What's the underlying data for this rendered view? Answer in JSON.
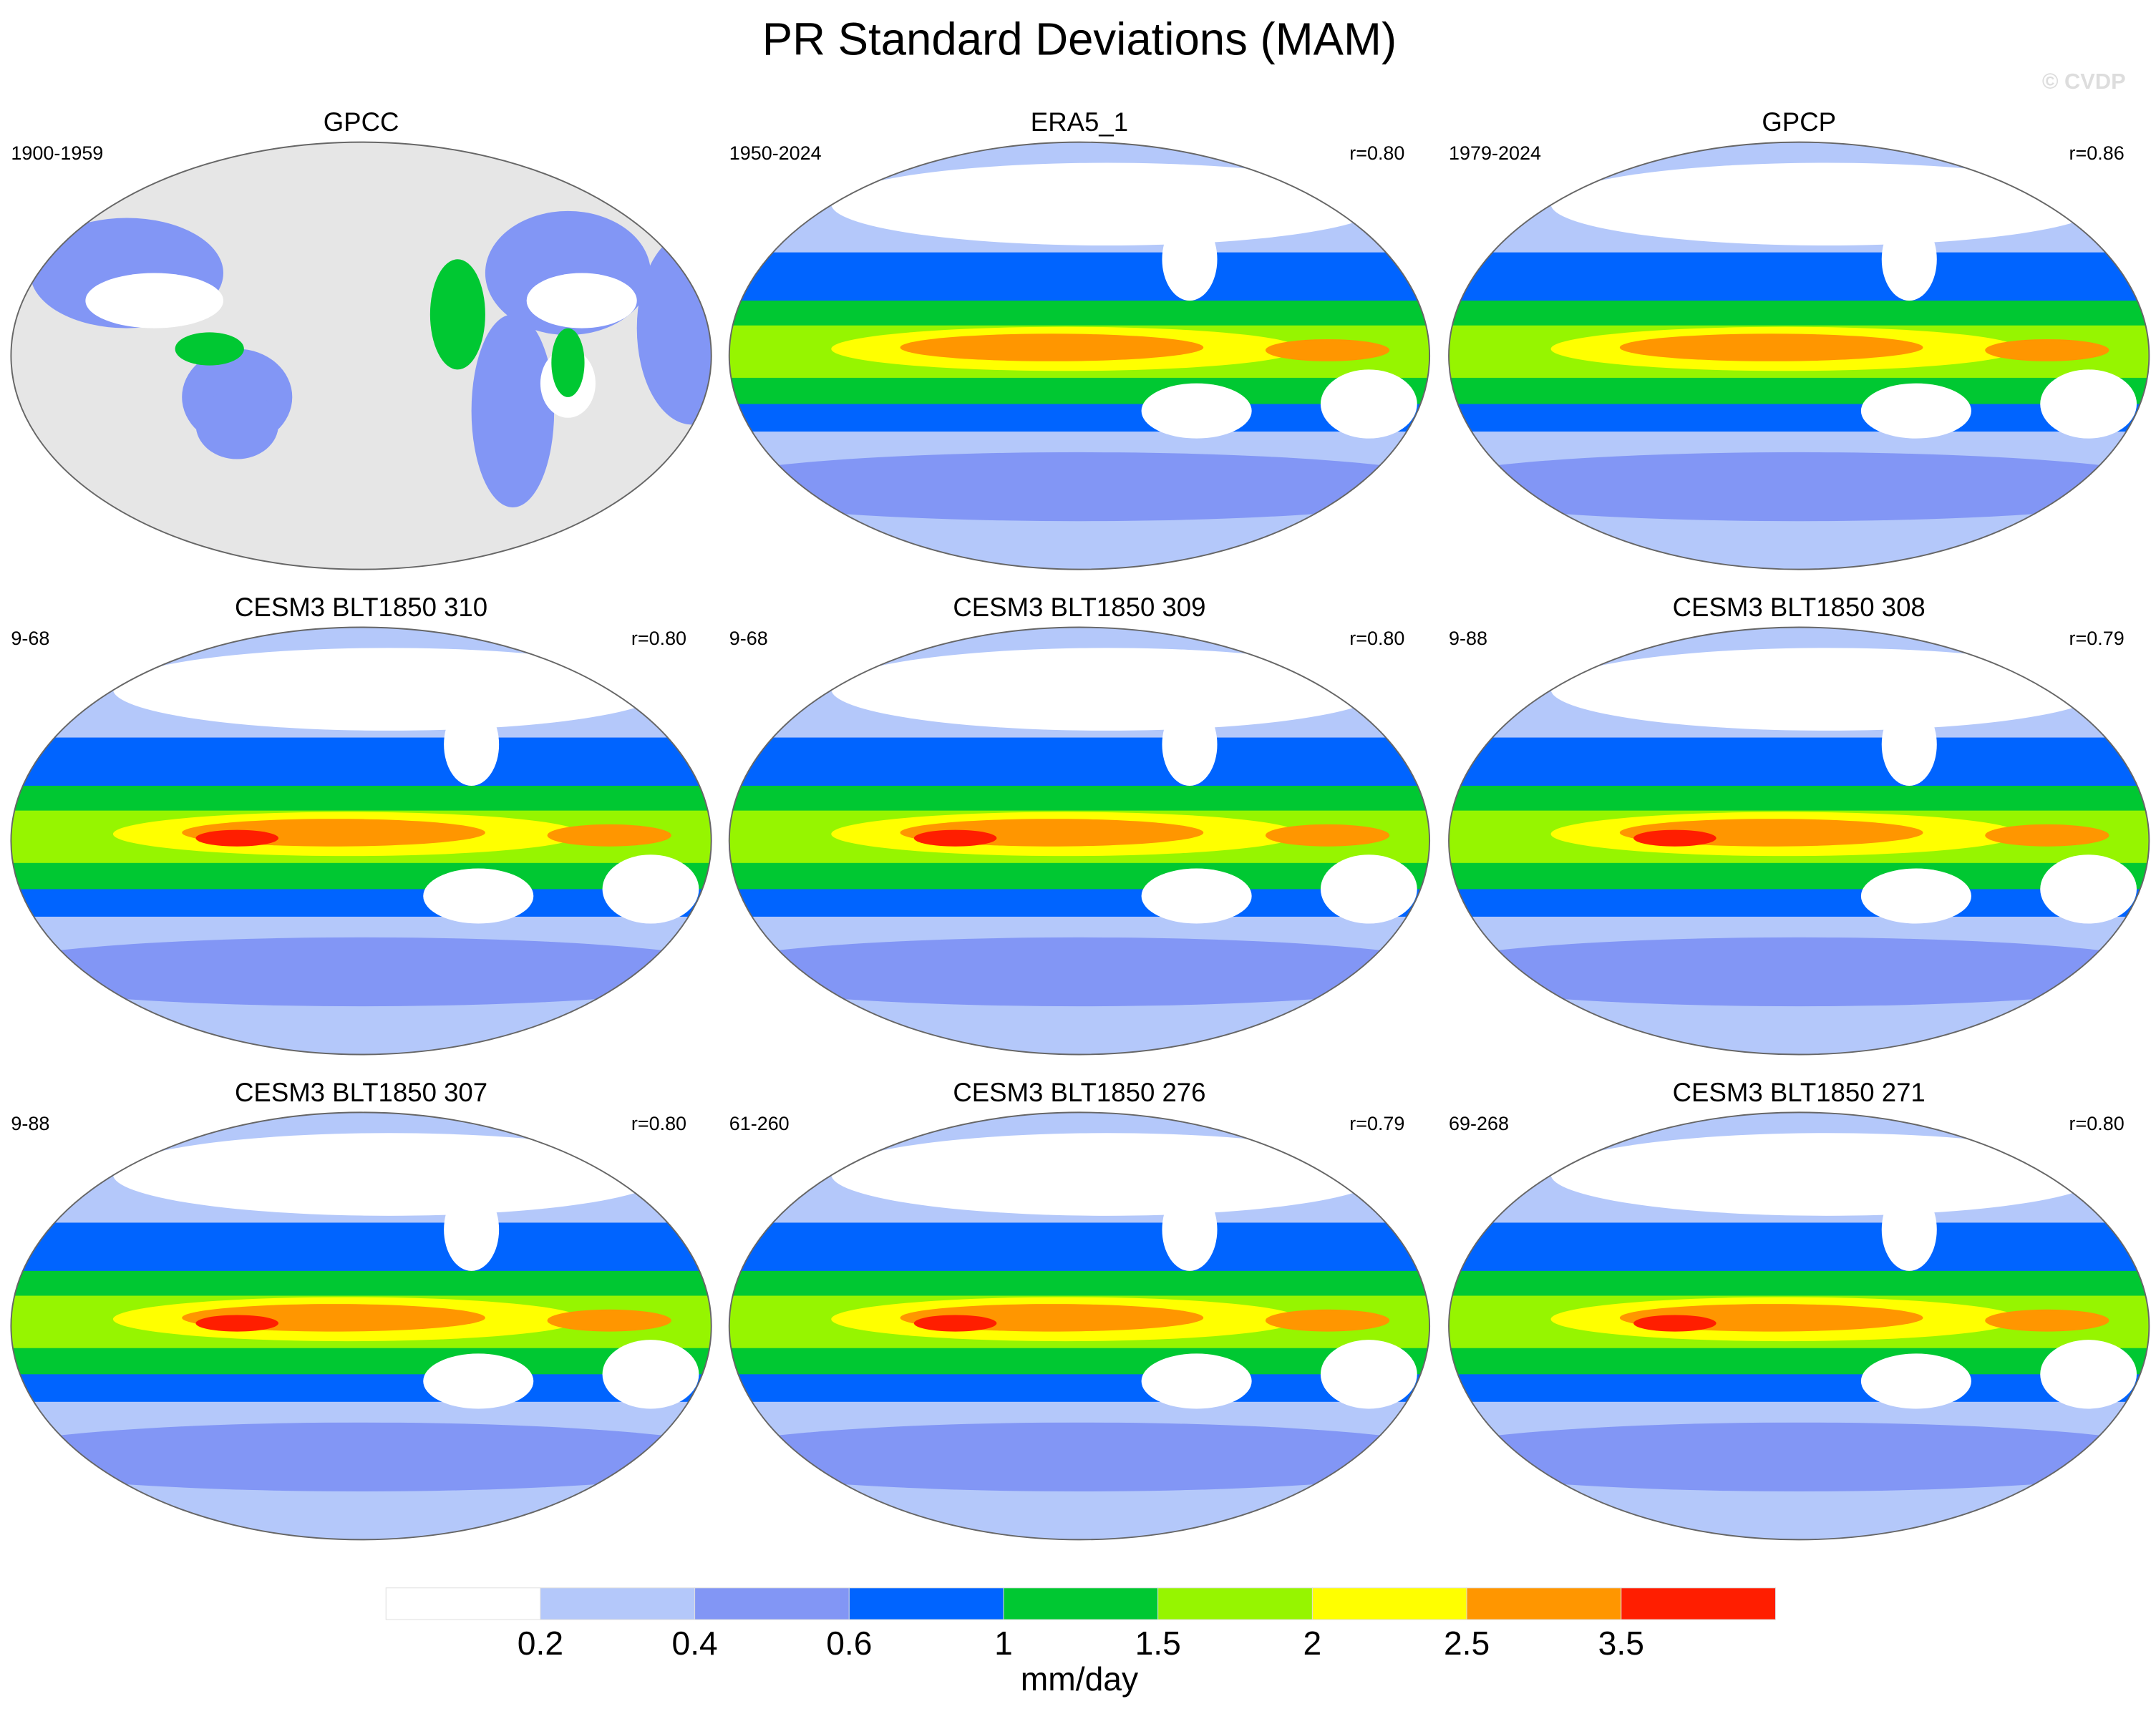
{
  "title": "PR Standard Deviations (MAM)",
  "watermark": "© CVDP",
  "panels": [
    {
      "title": "GPCC",
      "period": "1900-1959"
    },
    {
      "title": "ERA5_1",
      "period": "1950-2024",
      "r": "r=0.80"
    },
    {
      "title": "GPCP",
      "period": "1979-2024",
      "r": "r=0.86"
    },
    {
      "title": "CESM3 BLT1850 310",
      "period": "9-68",
      "r": "r=0.80"
    },
    {
      "title": "CESM3 BLT1850 309",
      "period": "9-68",
      "r": "r=0.80"
    },
    {
      "title": "CESM3 BLT1850 308",
      "period": "9-88",
      "r": "r=0.79"
    },
    {
      "title": "CESM3 BLT1850 307",
      "period": "9-88",
      "r": "r=0.80"
    },
    {
      "title": "CESM3 BLT1850 276",
      "period": "61-260",
      "r": "r=0.79"
    },
    {
      "title": "CESM3 BLT1850 271",
      "period": "69-268",
      "r": "r=0.80"
    }
  ],
  "colorbar": {
    "colors": [
      "#ffffff",
      "#b4c8fa",
      "#8296f5",
      "#0064ff",
      "#00c832",
      "#96f500",
      "#ffff00",
      "#ff9600",
      "#ff1e00"
    ],
    "ticks": [
      0.2,
      0.4,
      0.6,
      1,
      1.5,
      2,
      2.5,
      3.5
    ],
    "label": "mm/day"
  }
}
